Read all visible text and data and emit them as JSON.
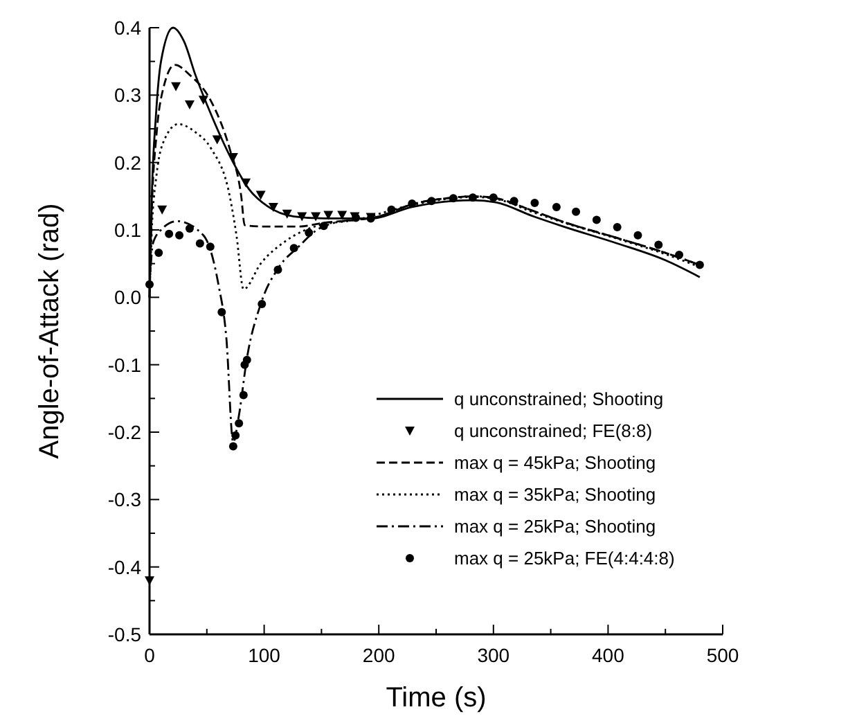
{
  "chart_data": {
    "type": "line",
    "xlabel": "Time (s)",
    "ylabel": "Angle-of-Attack (rad)",
    "xlim": [
      0,
      500
    ],
    "ylim": [
      -0.5,
      0.4
    ],
    "xticks": [
      0,
      {
        "value": 50,
        "label": null
      },
      100,
      {
        "value": 150,
        "label": null
      },
      200,
      {
        "value": 250,
        "label": null
      },
      300,
      {
        "value": 350,
        "label": null
      },
      400,
      {
        "value": 450,
        "label": null
      },
      500
    ],
    "yticks": [
      -0.5,
      {
        "value": -0.45,
        "label": null
      },
      -0.4,
      {
        "value": -0.35,
        "label": null
      },
      -0.3,
      {
        "value": -0.25,
        "label": null
      },
      -0.2,
      {
        "value": -0.15,
        "label": null
      },
      -0.1,
      {
        "value": -0.05,
        "label": null
      },
      {
        "value": 0,
        "label": "0.0"
      },
      {
        "value": 0.05,
        "label": null
      },
      0.1,
      {
        "value": 0.15,
        "label": null
      },
      0.2,
      {
        "value": 0.25,
        "label": null
      },
      0.3,
      {
        "value": 0.35,
        "label": null
      },
      0.4
    ],
    "grid": false,
    "legend": "bottom right",
    "series": [
      {
        "name": "q unconstrained; Shooting",
        "color": "#000000",
        "line_style": "solid",
        "marker": "none",
        "x": [
          0,
          2,
          5.6,
          10,
          20.5,
          30,
          40,
          54,
          73,
          87,
          103,
          126,
          153,
          193,
          229,
          265,
          282,
          302,
          335,
          361,
          408,
          450,
          480
        ],
        "values": [
          0.0,
          0.15,
          0.27,
          0.35,
          0.4,
          0.38,
          0.33,
          0.27,
          0.2,
          0.16,
          0.135,
          0.12,
          0.117,
          0.117,
          0.134,
          0.143,
          0.144,
          0.141,
          0.12,
          0.105,
          0.08,
          0.055,
          0.03
        ]
      },
      {
        "name": "q unconstrained; FE(8:8)",
        "type": "scatter",
        "color": "#000000",
        "marker": "triangle",
        "x": [
          0,
          11,
          23,
          35,
          47,
          59,
          73,
          84,
          97,
          108,
          120,
          133,
          145,
          156,
          168,
          179,
          193
        ],
        "values": [
          -0.42,
          0.13,
          0.313,
          0.286,
          0.293,
          0.234,
          0.208,
          0.17,
          0.152,
          0.134,
          0.124,
          0.12,
          0.12,
          0.122,
          0.122,
          0.12,
          0.119
        ]
      },
      {
        "name": "max q = 45kPa; Shooting",
        "color": "#000000",
        "line_style": "dashed",
        "marker": "none",
        "x": [
          0,
          2,
          6,
          12,
          22,
          35,
          54,
          70,
          80,
          83,
          100,
          130,
          150,
          200,
          229,
          265,
          282,
          302,
          335,
          361,
          408,
          450,
          480
        ],
        "values": [
          0.0,
          0.13,
          0.24,
          0.31,
          0.345,
          0.33,
          0.29,
          0.22,
          0.15,
          0.107,
          0.105,
          0.105,
          0.11,
          0.12,
          0.138,
          0.148,
          0.15,
          0.147,
          0.128,
          0.112,
          0.088,
          0.066,
          0.048
        ]
      },
      {
        "name": "max q = 35kPa; Shooting",
        "color": "#000000",
        "line_style": "dotted",
        "marker": "none",
        "x": [
          0,
          2,
          6,
          12,
          25,
          40,
          54,
          70,
          76,
          82,
          97,
          120,
          146,
          180,
          229,
          265,
          282,
          302,
          335,
          361,
          408,
          450,
          480
        ],
        "values": [
          0.0,
          0.1,
          0.18,
          0.23,
          0.257,
          0.245,
          0.22,
          0.15,
          0.09,
          0.012,
          0.05,
          0.085,
          0.106,
          0.115,
          0.137,
          0.147,
          0.149,
          0.146,
          0.126,
          0.111,
          0.087,
          0.064,
          0.045
        ]
      },
      {
        "name": "max q = 25kPa; Shooting",
        "color": "#000000",
        "line_style": "dashdot",
        "marker": "none",
        "x": [
          0,
          3,
          10,
          24,
          47,
          60,
          67,
          73,
          78,
          85,
          97,
          113,
          130,
          146,
          160,
          200,
          229,
          265,
          282,
          302,
          335,
          361,
          408,
          450,
          480
        ],
        "values": [
          0.015,
          0.08,
          0.1,
          0.113,
          0.092,
          0.02,
          -0.06,
          -0.215,
          -0.175,
          -0.09,
          -0.01,
          0.045,
          0.075,
          0.1,
          0.11,
          0.12,
          0.138,
          0.148,
          0.15,
          0.147,
          0.128,
          0.112,
          0.088,
          0.066,
          0.048
        ]
      },
      {
        "name": "max q = 25kPa; FE(4:4:4:8)",
        "type": "scatter",
        "color": "#000000",
        "marker": "circle",
        "x": [
          0,
          8,
          17,
          26,
          35,
          44,
          53,
          63,
          73,
          75,
          78,
          82,
          83,
          85,
          98,
          112,
          126,
          139,
          152,
          180,
          193,
          211,
          229,
          246,
          265,
          282,
          300,
          318,
          336,
          355,
          372,
          390,
          408,
          426,
          444,
          462,
          480
        ],
        "values": [
          0.019,
          0.066,
          0.094,
          0.092,
          0.102,
          0.08,
          0.075,
          -0.022,
          -0.221,
          -0.205,
          -0.187,
          -0.145,
          -0.1,
          -0.093,
          -0.01,
          0.041,
          0.073,
          0.096,
          0.106,
          0.118,
          0.117,
          0.13,
          0.139,
          0.143,
          0.147,
          0.148,
          0.148,
          0.143,
          0.14,
          0.134,
          0.127,
          0.115,
          0.104,
          0.092,
          0.078,
          0.063,
          0.048
        ]
      }
    ]
  }
}
